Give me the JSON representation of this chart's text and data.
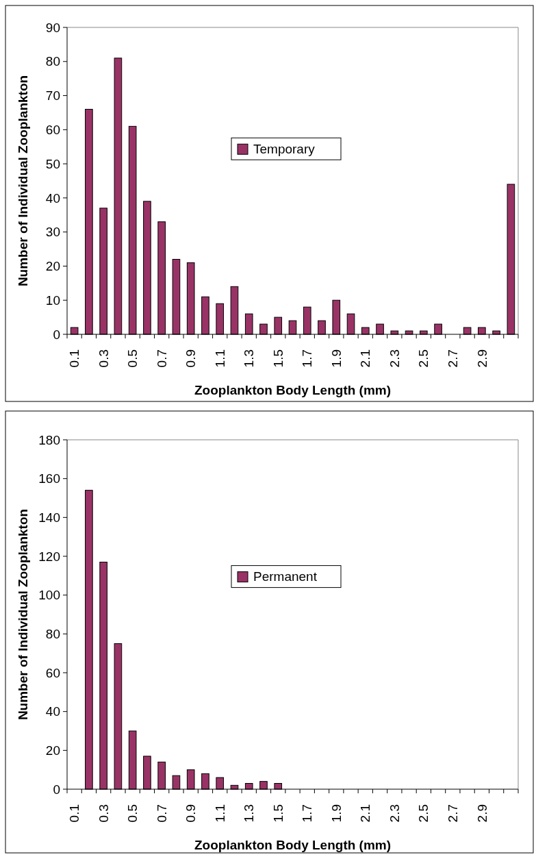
{
  "chart_data": [
    {
      "type": "bar",
      "categories": [
        "0.1",
        null,
        "0.3",
        null,
        "0.5",
        null,
        "0.7",
        null,
        "0.9",
        null,
        "1.1",
        null,
        "1.3",
        null,
        "1.5",
        null,
        "1.7",
        null,
        "1.9",
        null,
        "2.1",
        null,
        "2.3",
        null,
        "2.5",
        null,
        "2.7",
        null,
        "2.9",
        null,
        null
      ],
      "series": [
        {
          "name": "Temporary",
          "color": "#993366",
          "values": [
            2,
            66,
            37,
            81,
            61,
            39,
            33,
            22,
            21,
            11,
            9,
            14,
            6,
            3,
            5,
            4,
            8,
            4,
            10,
            6,
            2,
            3,
            1,
            1,
            1,
            3,
            0,
            2,
            2,
            1,
            44
          ]
        }
      ],
      "ylim": [
        0,
        90
      ],
      "yticks": [
        0,
        10,
        20,
        30,
        40,
        50,
        60,
        70,
        80,
        90
      ],
      "xlabel": "Zooplankton Body Length (mm)",
      "ylabel": "Number of Individual Zooplankton",
      "legend": "center"
    },
    {
      "type": "bar",
      "categories": [
        "0.1",
        null,
        "0.3",
        null,
        "0.5",
        null,
        "0.7",
        null,
        "0.9",
        null,
        "1.1",
        null,
        "1.3",
        null,
        "1.5",
        null,
        "1.7",
        null,
        "1.9",
        null,
        "2.1",
        null,
        "2.3",
        null,
        "2.5",
        null,
        "2.7",
        null,
        "2.9",
        null,
        null
      ],
      "series": [
        {
          "name": "Permanent",
          "color": "#993366",
          "values": [
            0,
            154,
            117,
            75,
            30,
            17,
            14,
            7,
            10,
            8,
            6,
            2,
            3,
            4,
            3,
            0,
            0,
            0,
            0,
            0,
            0,
            0,
            0,
            0,
            0,
            0,
            0,
            0,
            0,
            0,
            0
          ]
        }
      ],
      "ylim": [
        0,
        180
      ],
      "yticks": [
        0,
        20,
        40,
        60,
        80,
        100,
        120,
        140,
        160,
        180
      ],
      "xlabel": "Zooplankton Body Length (mm)",
      "ylabel": "Number of Individual Zooplankton",
      "legend": "center"
    }
  ]
}
